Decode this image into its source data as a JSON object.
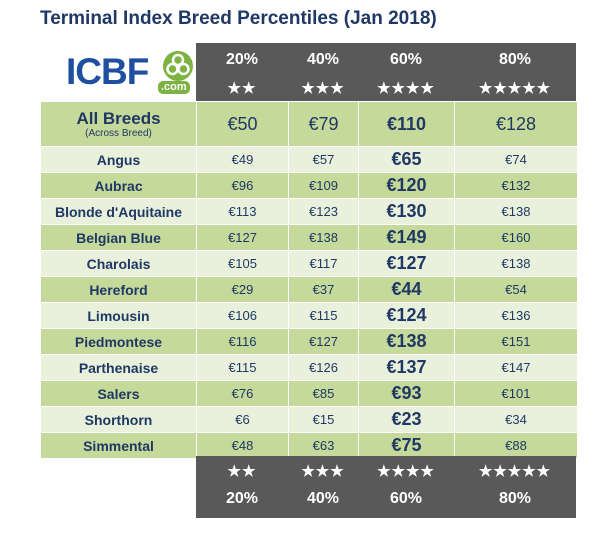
{
  "title": "Terminal Index Breed Percentiles (Jan 2018)",
  "logo": {
    "text": "ICBF",
    "subtext": ".com"
  },
  "percentiles": [
    {
      "label": "20%",
      "stars": "★★"
    },
    {
      "label": "40%",
      "stars": "★★★"
    },
    {
      "label": "60%",
      "stars": "★★★★"
    },
    {
      "label": "80%",
      "stars": "★★★★★"
    }
  ],
  "all_breeds": {
    "name": "All Breeds",
    "note": "(Across Breed)",
    "values": [
      "€50",
      "€79",
      "€110",
      "€128"
    ]
  },
  "breeds": [
    {
      "name": "Angus",
      "values": [
        "€49",
        "€57",
        "€65",
        "€74"
      ]
    },
    {
      "name": "Aubrac",
      "values": [
        "€96",
        "€109",
        "€120",
        "€132"
      ]
    },
    {
      "name": "Blonde d'Aquitaine",
      "values": [
        "€113",
        "€123",
        "€130",
        "€138"
      ]
    },
    {
      "name": "Belgian Blue",
      "values": [
        "€127",
        "€138",
        "€149",
        "€160"
      ]
    },
    {
      "name": "Charolais",
      "values": [
        "€105",
        "€117",
        "€127",
        "€138"
      ]
    },
    {
      "name": "Hereford",
      "values": [
        "€29",
        "€37",
        "€44",
        "€54"
      ]
    },
    {
      "name": "Limousin",
      "values": [
        "€106",
        "€115",
        "€124",
        "€136"
      ]
    },
    {
      "name": "Piedmontese",
      "values": [
        "€116",
        "€127",
        "€138",
        "€151"
      ]
    },
    {
      "name": "Parthenaise",
      "values": [
        "€115",
        "€126",
        "€137",
        "€147"
      ]
    },
    {
      "name": "Salers",
      "values": [
        "€76",
        "€85",
        "€93",
        "€101"
      ]
    },
    {
      "name": "Shorthorn",
      "values": [
        "€6",
        "€15",
        "€23",
        "€34"
      ]
    },
    {
      "name": "Simmental",
      "values": [
        "€48",
        "€63",
        "€75",
        "€88"
      ]
    }
  ],
  "colors": {
    "header_bg": "#595959",
    "row_dark": "#c5d99a",
    "row_light": "#e9f1dc",
    "text": "#1f3864"
  }
}
